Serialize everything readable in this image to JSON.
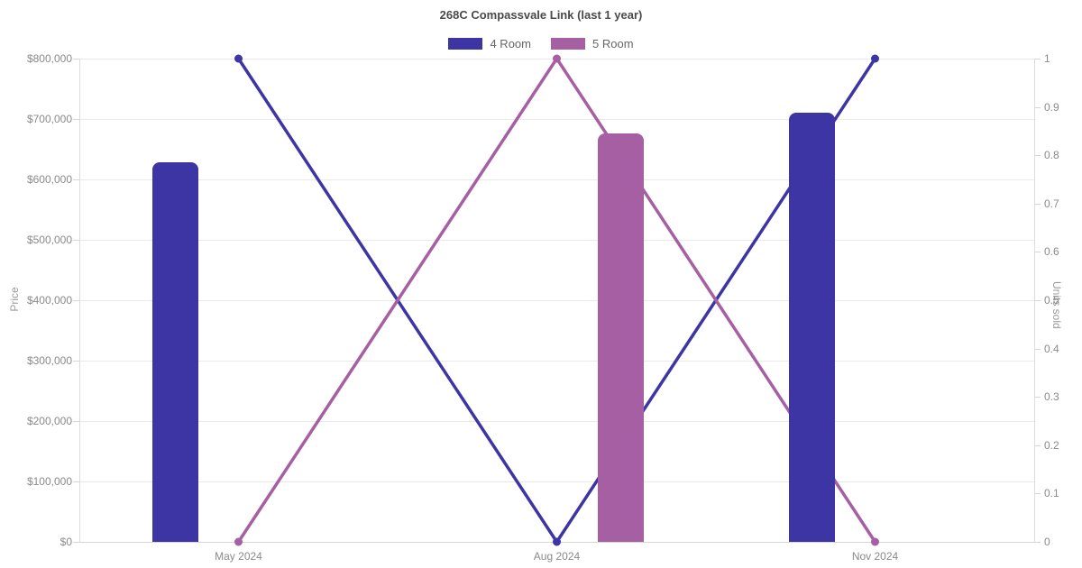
{
  "chart_data": {
    "type": "combo",
    "title": "268C Compassvale Link (last 1 year)",
    "categories": [
      "May 2024",
      "Aug 2024",
      "Nov 2024"
    ],
    "series": [
      {
        "name": "4 Room",
        "type": "bar",
        "axis": "left",
        "color": "#3c35a3",
        "values": [
          628000,
          null,
          710000
        ]
      },
      {
        "name": "5 Room",
        "type": "bar",
        "axis": "left",
        "color": "#a75fa3",
        "values": [
          null,
          676000,
          null
        ]
      },
      {
        "name": "4 Room",
        "type": "line",
        "axis": "right",
        "color": "#3c35a3",
        "values": [
          1,
          0,
          1
        ]
      },
      {
        "name": "5 Room",
        "type": "line",
        "axis": "right",
        "color": "#a75fa3",
        "values": [
          0,
          1,
          0
        ]
      }
    ],
    "legend": [
      {
        "label": "4 Room",
        "color": "#3c35a3"
      },
      {
        "label": "5 Room",
        "color": "#a75fa3"
      }
    ],
    "left_axis": {
      "title": "Price",
      "min": 0,
      "max": 800000,
      "step": 100000,
      "ticks": [
        "$800,000",
        "$700,000",
        "$600,000",
        "$500,000",
        "$400,000",
        "$300,000",
        "$200,000",
        "$100,000",
        "$0"
      ]
    },
    "right_axis": {
      "title": "Units sold",
      "min": 0,
      "max": 1,
      "step": 0.1,
      "ticks": [
        "1",
        "0.9",
        "0.8",
        "0.7",
        "0.6",
        "0.5",
        "0.4",
        "0.3",
        "0.2",
        "0.1",
        "0"
      ]
    },
    "grid": true,
    "legend_position": "top"
  }
}
